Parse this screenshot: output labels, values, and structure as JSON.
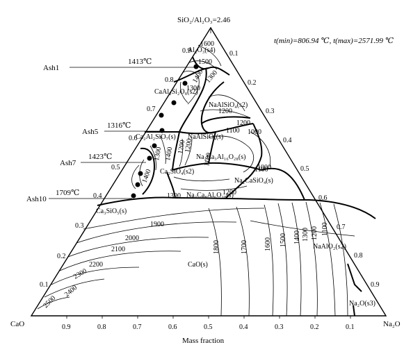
{
  "header": {
    "apex_label": "SiO₂/Al₂O₃=2.46",
    "temp_range": "t(min)=806.94 ℃, t(max)=2571.99 ℃"
  },
  "corners": {
    "left": "CaO",
    "right": "Na₂O"
  },
  "axis": {
    "xlabel": "Mass fraction",
    "bottom_ticks": [
      "0.9",
      "0.8",
      "0.7",
      "0.6",
      "0.5",
      "0.4",
      "0.3",
      "0.2",
      "0.1"
    ],
    "left_ticks": [
      "0.1",
      "0.2",
      "0.3",
      "0.4",
      "0.5",
      "0.6",
      "0.7",
      "0.8",
      "0.9"
    ],
    "right_ticks": [
      "0.1",
      "0.2",
      "0.3",
      "0.4",
      "0.5",
      "0.6",
      "0.7",
      "0.8",
      "0.9"
    ]
  },
  "ash_samples": [
    {
      "name": "Ash1",
      "temp": "1413℃"
    },
    {
      "name": "Ash5",
      "temp": "1316℃"
    },
    {
      "name": "Ash7",
      "temp": "1423℃"
    },
    {
      "name": "Ash10",
      "temp": "1709℃"
    }
  ],
  "phases": [
    "Al₂O₃(s4)",
    "CaAl₂Si₂O₈(s2)",
    "NaAlSiO₄(s2)",
    "Ca₂Al₂SiO₇(s)",
    "NaAlSiO₄(s)",
    "Na₂Ca₃Al₁₆O₂₈(s)",
    "Ca₂SiO₄(s2)",
    "Na₂CaSiO₄(s)",
    "Ca₃SiO₅(s)",
    "Na₂Ca₈Al₆O₁₈(s)",
    "CaO(s)",
    "NaAlO₂(s2)",
    "Na₂O(s3)"
  ],
  "isotherms": [
    "1600",
    "1500",
    "1400",
    "1300",
    "1200",
    "1100",
    "1000",
    "1200",
    "1100",
    "1000",
    "1400",
    "1300",
    "1200",
    "1100",
    "1200",
    "1300",
    "1200",
    "1300",
    "1400",
    "1900",
    "2000",
    "2100",
    "2200",
    "2300",
    "2400",
    "2500",
    "1800",
    "1700",
    "1600",
    "1500",
    "1400",
    "1300",
    "1200",
    "1100"
  ]
}
